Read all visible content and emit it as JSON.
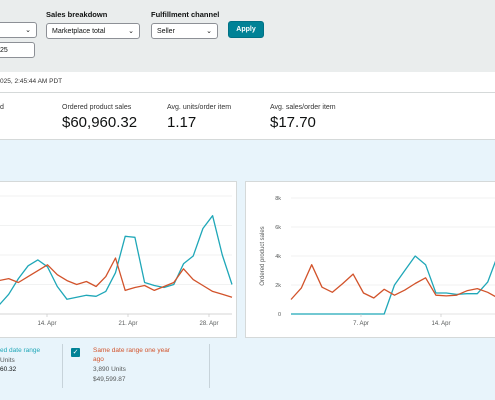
{
  "filters": {
    "left_select_value": "",
    "left_date_value": "25",
    "sales_breakdown_label": "Sales breakdown",
    "sales_breakdown_value": "Marketplace total",
    "fulfillment_label": "Fulfillment channel",
    "fulfillment_value": "Seller",
    "apply_label": "Apply"
  },
  "timestamp": "025, 2:45:44 AM PDT",
  "metrics": [
    {
      "label": "d",
      "value": ""
    },
    {
      "label": "Ordered product sales",
      "value": "$60,960.32"
    },
    {
      "label": "Avg. units/order item",
      "value": "1.17"
    },
    {
      "label": "Avg. sales/order item",
      "value": "$17.70"
    }
  ],
  "colors": {
    "current": "#1fa7b8",
    "previous": "#d2532b",
    "accent": "#008296"
  },
  "chart_data": [
    {
      "type": "line",
      "x_tick_labels": [
        "14. Apr",
        "21. Apr",
        "28. Apr"
      ],
      "series": [
        {
          "name": "Selected date range",
          "color": "#1fa7b8",
          "values": [
            45,
            100,
            180,
            245,
            275,
            240,
            140,
            75,
            85,
            95,
            90,
            115,
            210,
            395,
            390,
            160,
            145,
            135,
            150,
            255,
            295,
            435,
            500,
            300,
            150
          ]
        },
        {
          "name": "Same date range one year ago",
          "color": "#d2532b",
          "values": [
            170,
            180,
            160,
            190,
            220,
            250,
            200,
            170,
            150,
            165,
            140,
            190,
            285,
            120,
            135,
            145,
            120,
            140,
            160,
            230,
            175,
            145,
            115,
            100,
            85
          ]
        }
      ]
    },
    {
      "type": "line",
      "ylabel": "Ordered product sales",
      "y_ticks": [
        "0",
        "2k",
        "4k",
        "6k",
        "8k"
      ],
      "ylim": [
        0,
        8000
      ],
      "x_tick_labels": [
        "7. Apr",
        "14. Apr"
      ],
      "series": [
        {
          "name": "Selected date range",
          "color": "#1fa7b8",
          "values": [
            0,
            0,
            0,
            0,
            0,
            0,
            0,
            0,
            0,
            0,
            2000,
            3000,
            4000,
            3400,
            1450,
            1450,
            1350,
            1400,
            1400,
            2200,
            4100
          ]
        },
        {
          "name": "Same date range one year ago",
          "color": "#d2532b",
          "values": [
            1000,
            1800,
            3400,
            1850,
            1500,
            2100,
            2750,
            1450,
            1100,
            1700,
            1300,
            1650,
            2100,
            2500,
            1300,
            1250,
            1300,
            1600,
            1750,
            1500,
            1100
          ]
        }
      ]
    }
  ],
  "legend": {
    "current_label": "ed date range",
    "current_units": "Units",
    "current_sales": "60.32",
    "previous_label_line1": "Same date range one year",
    "previous_label_line2": "ago",
    "previous_units": "3,890 Units",
    "previous_sales": "$49,599.87"
  }
}
